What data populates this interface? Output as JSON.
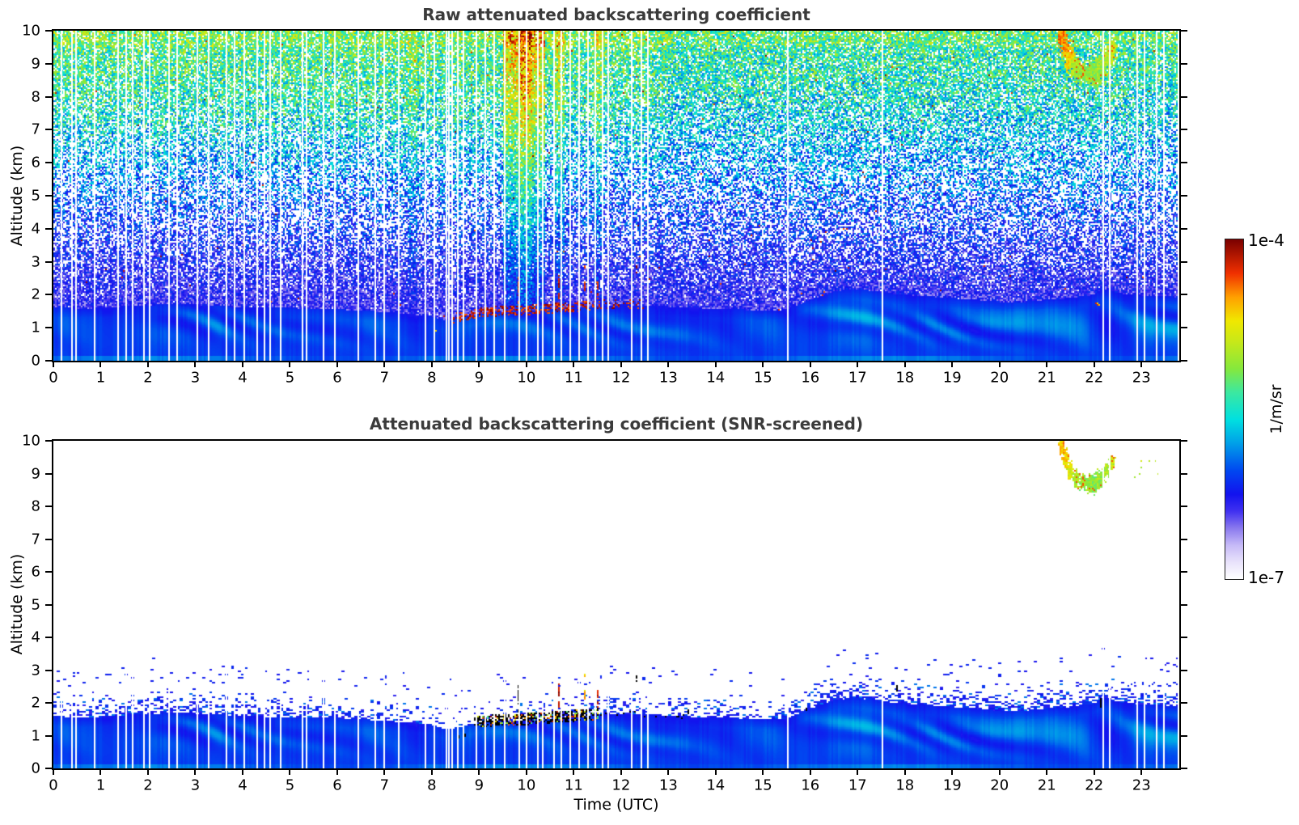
{
  "figure": {
    "background": "#ffffff",
    "title_color": "#3b3b3b",
    "axis_color": "#000000"
  },
  "chart_data": {
    "type": "heatmap",
    "xlabel": "Time (UTC)",
    "x_range_hours": [
      0,
      23.8
    ],
    "data_end_hour": 23.77,
    "y_range_km": [
      0,
      10
    ],
    "xticks": [
      0,
      1,
      2,
      3,
      4,
      5,
      6,
      7,
      8,
      9,
      10,
      11,
      12,
      13,
      14,
      15,
      16,
      17,
      18,
      19,
      20,
      21,
      22,
      23
    ],
    "yticks": [
      0,
      1,
      2,
      3,
      4,
      5,
      6,
      7,
      8,
      9,
      10
    ],
    "grid": false,
    "panels": [
      {
        "id": "raw",
        "title": "Raw attenuated backscattering coefficient",
        "ylabel": "Altitude (km)",
        "screened": false
      },
      {
        "id": "screened",
        "title": "Attenuated backscattering coefficient (SNR-screened)",
        "ylabel": "Altitude (km)",
        "screened": true
      }
    ],
    "colorbar": {
      "max_label": "1e-4",
      "min_label": "1e-7",
      "unit_label": "1/m/sr",
      "stops": [
        [
          0.0,
          "#ffffff"
        ],
        [
          0.05,
          "#e8e2fb"
        ],
        [
          0.1,
          "#c6baf7"
        ],
        [
          0.15,
          "#8a79ee"
        ],
        [
          0.2,
          "#4030f0"
        ],
        [
          0.25,
          "#1212ee"
        ],
        [
          0.32,
          "#0048f0"
        ],
        [
          0.4,
          "#00a0e8"
        ],
        [
          0.47,
          "#00e0e0"
        ],
        [
          0.55,
          "#3ce8a0"
        ],
        [
          0.62,
          "#86e83c"
        ],
        [
          0.7,
          "#c8e818"
        ],
        [
          0.76,
          "#f0e800"
        ],
        [
          0.83,
          "#ffa000"
        ],
        [
          0.9,
          "#f03000"
        ],
        [
          1.0,
          "#7a0000"
        ]
      ]
    },
    "boundary_layer_top_km": [
      [
        0,
        1.62
      ],
      [
        0.5,
        1.58
      ],
      [
        1,
        1.6
      ],
      [
        1.5,
        1.65
      ],
      [
        2,
        1.68
      ],
      [
        2.5,
        1.72
      ],
      [
        3,
        1.7
      ],
      [
        3.5,
        1.66
      ],
      [
        4,
        1.62
      ],
      [
        4.5,
        1.6
      ],
      [
        5,
        1.6
      ],
      [
        5.5,
        1.58
      ],
      [
        6,
        1.56
      ],
      [
        6.5,
        1.52
      ],
      [
        7,
        1.48
      ],
      [
        7.5,
        1.42
      ],
      [
        8,
        1.35
      ],
      [
        8.3,
        1.22
      ],
      [
        8.6,
        1.28
      ],
      [
        9,
        1.42
      ],
      [
        9.5,
        1.48
      ],
      [
        10,
        1.5
      ],
      [
        10.5,
        1.55
      ],
      [
        11,
        1.6
      ],
      [
        11.5,
        1.66
      ],
      [
        12,
        1.7
      ],
      [
        12.5,
        1.68
      ],
      [
        13,
        1.64
      ],
      [
        13.5,
        1.6
      ],
      [
        14,
        1.58
      ],
      [
        15,
        1.52
      ],
      [
        15.5,
        1.55
      ],
      [
        16,
        1.85
      ],
      [
        16.5,
        2.1
      ],
      [
        16.9,
        2.18
      ],
      [
        17.3,
        2.12
      ],
      [
        17.8,
        2.02
      ],
      [
        18.5,
        1.95
      ],
      [
        19,
        1.9
      ],
      [
        19.5,
        1.85
      ],
      [
        20,
        1.78
      ],
      [
        20.5,
        1.78
      ],
      [
        21,
        1.85
      ],
      [
        21.5,
        1.9
      ],
      [
        22,
        2.0
      ],
      [
        22.2,
        2.2
      ],
      [
        22.5,
        2.05
      ],
      [
        23,
        1.98
      ],
      [
        23.5,
        1.95
      ],
      [
        23.8,
        1.92
      ]
    ],
    "wisp_amplitude": [
      [
        0,
        0.25
      ],
      [
        2,
        0.3
      ],
      [
        2.5,
        0.55
      ],
      [
        3.5,
        0.6
      ],
      [
        4,
        0.4
      ],
      [
        5,
        0.3
      ],
      [
        6,
        0.35
      ],
      [
        7,
        0.3
      ],
      [
        8,
        0.35
      ],
      [
        9,
        0.4
      ],
      [
        10,
        0.45
      ],
      [
        11,
        0.35
      ],
      [
        12,
        0.45
      ],
      [
        13,
        0.5
      ],
      [
        14,
        0.35
      ],
      [
        15,
        0.3
      ],
      [
        16,
        0.55
      ],
      [
        16.8,
        0.7
      ],
      [
        17.5,
        0.55
      ],
      [
        18,
        0.4
      ],
      [
        19,
        0.6
      ],
      [
        20,
        0.7
      ],
      [
        21,
        0.65
      ],
      [
        22,
        0.6
      ],
      [
        22.8,
        0.75
      ],
      [
        23.8,
        0.8
      ]
    ],
    "speckle_density": [
      [
        0,
        1
      ],
      [
        2,
        1.3
      ],
      [
        4,
        1.2
      ],
      [
        6,
        1
      ],
      [
        8,
        0.5
      ],
      [
        8.5,
        0.3
      ],
      [
        9,
        0.6
      ],
      [
        10,
        0.8
      ],
      [
        11,
        1
      ],
      [
        12,
        1
      ],
      [
        13,
        0.9
      ],
      [
        14,
        0.8
      ],
      [
        15,
        0.7
      ],
      [
        16,
        1.1
      ],
      [
        17,
        1.2
      ],
      [
        18,
        1.1
      ],
      [
        19,
        1.2
      ],
      [
        20,
        1.3
      ],
      [
        21,
        1.2
      ],
      [
        22,
        1.3
      ],
      [
        23,
        1.4
      ],
      [
        23.8,
        1.4
      ]
    ],
    "gap_times_utc": [
      0.15,
      0.38,
      0.47,
      0.85,
      1.35,
      1.52,
      1.65,
      1.9,
      2.02,
      2.42,
      2.6,
      3.03,
      3.26,
      3.64,
      3.81,
      4.02,
      4.3,
      4.45,
      4.57,
      4.79,
      5.25,
      5.34,
      5.7,
      5.94,
      6.43,
      6.78,
      6.97,
      7.28,
      7.84,
      8.03,
      8.3,
      8.34,
      8.42,
      8.53,
      8.65,
      8.92,
      9.11,
      9.3,
      9.52,
      9.83,
      9.98,
      10.22,
      10.32,
      10.56,
      10.72,
      10.91,
      11.1,
      11.29,
      11.44,
      11.59,
      11.71,
      12.2,
      12.42,
      12.55,
      15.5,
      17.5,
      22.18,
      22.32,
      22.9,
      23.05,
      23.3,
      23.45
    ],
    "noise": {
      "base": [
        [
          1.5,
          0.2
        ],
        [
          2,
          0.21
        ],
        [
          3,
          0.24
        ],
        [
          4,
          0.28
        ],
        [
          5,
          0.33
        ],
        [
          6,
          0.4
        ],
        [
          7,
          0.47
        ],
        [
          8,
          0.52
        ],
        [
          9,
          0.55
        ],
        [
          10,
          0.57
        ]
      ],
      "spread": [
        [
          1.5,
          0.08
        ],
        [
          3,
          0.1
        ],
        [
          5,
          0.13
        ],
        [
          7,
          0.15
        ],
        [
          10,
          0.16
        ]
      ],
      "white_prob": [
        [
          1.5,
          0.04
        ],
        [
          2,
          0.1
        ],
        [
          2.5,
          0.18
        ],
        [
          3,
          0.3
        ],
        [
          4,
          0.45
        ],
        [
          5,
          0.5
        ],
        [
          6,
          0.46
        ],
        [
          7,
          0.37
        ],
        [
          8,
          0.27
        ],
        [
          9,
          0.19
        ],
        [
          10,
          0.14
        ]
      ],
      "hot_pixel_prob": 0.003
    },
    "streaks": [
      {
        "t0": 9.5,
        "t1": 10.4,
        "boost": 0.2,
        "white_cut": 0.35
      },
      {
        "t0": 9.85,
        "t1": 10.12,
        "boost": 0.1,
        "white_cut": 0.5
      },
      {
        "t0": 10.55,
        "t1": 10.8,
        "boost": 0.13,
        "white_cut": 0.5
      },
      {
        "t0": 11.42,
        "t1": 11.58,
        "boost": 0.1,
        "white_cut": 0.6
      },
      {
        "t0": 7.5,
        "t1": 7.68,
        "boost": 0.06,
        "white_cut": 0.75
      },
      {
        "t0": 8.52,
        "t1": 8.62,
        "boost": 0.05,
        "white_cut": 0.8
      }
    ],
    "cloud_base_raw": {
      "t0": 8.45,
      "t1": 12.6,
      "dense_until": 11.3,
      "p_dense": 0.55,
      "p_sparse": 0.18
    },
    "cloud_base_screened": {
      "t0": 8.9,
      "t1": 11.5,
      "p_black": 0.45,
      "p_color": 0.2,
      "t1_sparse": 13.3,
      "p_black_sparse": 0.1
    },
    "spikes": [
      {
        "t": 9.3,
        "a0": 1.55,
        "a1": 2.1,
        "c": "black"
      },
      {
        "t": 9.82,
        "a0": 1.7,
        "a1": 2.55,
        "c": "black"
      },
      {
        "t": 10.22,
        "a0": 1.8,
        "a1": 2.5,
        "c": "black"
      },
      {
        "t": 10.67,
        "a0": 1.85,
        "a1": 2.62,
        "c": "red"
      },
      {
        "t": 11.22,
        "a0": 2.15,
        "a1": 2.9,
        "c": "redyellow"
      },
      {
        "t": 11.5,
        "a0": 1.9,
        "a1": 2.4,
        "c": "red"
      },
      {
        "t": 12.32,
        "a0": 2.72,
        "a1": 3.0,
        "c": "black"
      }
    ],
    "cirrus_blobs": [
      {
        "t": 21.32,
        "a": 9.85,
        "w": 0.07,
        "h": 0.45,
        "v": 0.8
      },
      {
        "t": 21.4,
        "a": 9.45,
        "w": 0.07,
        "h": 0.4,
        "v": 0.78
      },
      {
        "t": 21.5,
        "a": 9.1,
        "w": 0.08,
        "h": 0.4,
        "v": 0.72
      },
      {
        "t": 21.62,
        "a": 8.85,
        "w": 0.1,
        "h": 0.35,
        "v": 0.67
      },
      {
        "t": 21.78,
        "a": 8.72,
        "w": 0.13,
        "h": 0.3,
        "v": 0.64
      },
      {
        "t": 21.95,
        "a": 8.68,
        "w": 0.17,
        "h": 0.35,
        "v": 0.63
      },
      {
        "t": 22.12,
        "a": 8.82,
        "w": 0.13,
        "h": 0.35,
        "v": 0.64
      },
      {
        "t": 22.26,
        "a": 9.08,
        "w": 0.09,
        "h": 0.3,
        "v": 0.66
      },
      {
        "t": 22.38,
        "a": 9.38,
        "w": 0.08,
        "h": 0.28,
        "v": 0.69
      }
    ],
    "raw_dots": [
      {
        "t": 8.05,
        "a": 0.95
      },
      {
        "t": 22.02,
        "a": 1.75
      },
      {
        "t": 22.07,
        "a": 1.7
      }
    ],
    "screened_extras": {
      "dots": [
        {
          "t": 2.08,
          "a": 3.38
        },
        {
          "t": 0.3,
          "a": 2.55
        },
        {
          "t": 3.5,
          "a": 2.92
        },
        {
          "t": 5.15,
          "a": 2.98
        },
        {
          "t": 7.9,
          "a": 2.5
        },
        {
          "t": 20.15,
          "a": 2.6
        },
        {
          "t": 21.62,
          "a": 2.55
        },
        {
          "t": 23.0,
          "a": 2.62
        },
        {
          "t": 23.35,
          "a": 2.58
        }
      ],
      "black_marks": [
        {
          "t": 8.56,
          "a0": 1.0,
          "a1": 1.08
        },
        {
          "t": 8.68,
          "a0": 1.02,
          "a1": 1.1
        },
        {
          "t": 13.4,
          "a0": 1.72,
          "a1": 1.82
        },
        {
          "t": 15.9,
          "a0": 1.8,
          "a1": 1.9
        },
        {
          "t": 22.12,
          "a0": 1.9,
          "a1": 2.18
        },
        {
          "t": 17.82,
          "a0": 2.4,
          "a1": 2.55
        }
      ],
      "dash_band": {
        "t0": 22.7,
        "t1": 23.75,
        "a": 2.6,
        "prob": 0.5
      },
      "high_dots": {
        "t0": 22.5,
        "t1": 23.4,
        "a0": 8.7,
        "a1": 9.4,
        "prob": 0.05
      }
    }
  }
}
